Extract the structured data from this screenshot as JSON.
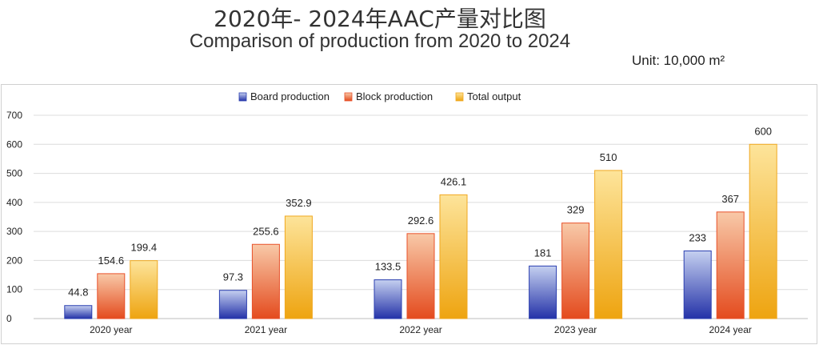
{
  "header": {
    "title_cn": "2020年- 2024年AAC产量对比图",
    "title_en": "Comparison of production from 2020 to 2024",
    "unit": "Unit: 10,000 m²"
  },
  "chart_data": {
    "type": "bar",
    "categories": [
      "2020 year",
      "2021 year",
      "2022 year",
      "2023 year",
      "2024 year"
    ],
    "series": [
      {
        "name": "Board production",
        "values": [
          44.8,
          97.3,
          133.5,
          181,
          233
        ],
        "color": "#2b3fb0"
      },
      {
        "name": "Block production",
        "values": [
          154.6,
          255.6,
          292.6,
          329,
          367
        ],
        "color": "#e8512a"
      },
      {
        "name": "Total output",
        "values": [
          199.4,
          352.9,
          426.1,
          510,
          600
        ],
        "color": "#f0a820"
      }
    ],
    "yticks": [
      0,
      100,
      200,
      300,
      400,
      500,
      600,
      700
    ],
    "ylim": [
      0,
      700
    ],
    "legend_position": "top-center",
    "grid": true
  }
}
